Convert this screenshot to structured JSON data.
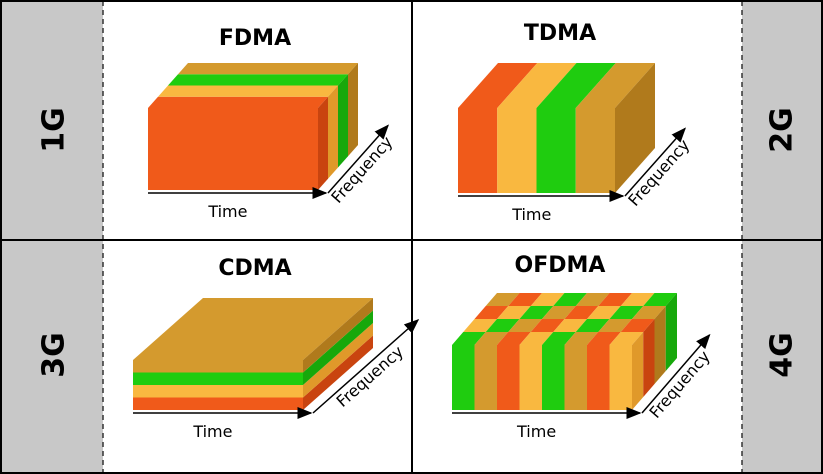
{
  "panels": [
    {
      "title": "FDMA",
      "generation": "1G",
      "x_label": "Time",
      "y_label": "Frequency"
    },
    {
      "title": "TDMA",
      "generation": "2G",
      "x_label": "Time",
      "y_label": "Frequency"
    },
    {
      "title": "CDMA",
      "generation": "3G",
      "x_label": "Time",
      "y_label": "Frequency"
    },
    {
      "title": "OFDMA",
      "generation": "4G",
      "x_label": "Time",
      "y_label": "Frequency"
    }
  ]
}
